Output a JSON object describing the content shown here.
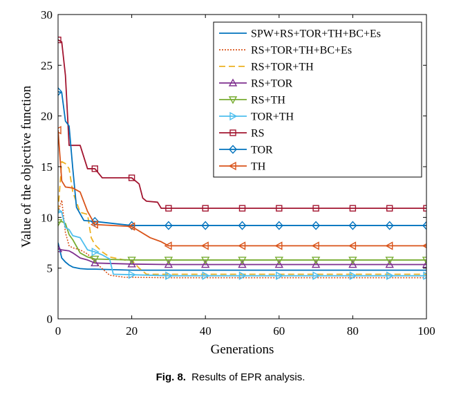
{
  "chart_data": {
    "type": "line",
    "xlabel": "Generations",
    "ylabel": "Value of the objective function",
    "xlim": [
      0,
      100
    ],
    "ylim": [
      0,
      30
    ],
    "xticks": [
      0,
      20,
      40,
      60,
      80,
      100
    ],
    "yticks": [
      0,
      5,
      10,
      15,
      20,
      25,
      30
    ],
    "legend_position": "top-right",
    "grid": false,
    "series": [
      {
        "name": "SPW+RS+TOR+TH+BC+Es",
        "color": "#0072BD",
        "dash": "",
        "marker": "none",
        "x": [
          0,
          1,
          2,
          3,
          4,
          6,
          8,
          10,
          15,
          20,
          25,
          30,
          40,
          60,
          80,
          100
        ],
        "y": [
          7.5,
          6.0,
          5.6,
          5.3,
          5.1,
          4.95,
          4.9,
          4.9,
          4.85,
          4.8,
          4.8,
          4.8,
          4.8,
          4.8,
          4.8,
          4.8
        ]
      },
      {
        "name": "RS+TOR+TH+BC+Es",
        "color": "#D95319",
        "dash": "2,2",
        "marker": "none",
        "x": [
          0,
          1,
          2,
          3,
          4,
          6,
          8,
          10,
          14,
          18,
          20,
          30,
          100
        ],
        "y": [
          10.5,
          11.7,
          8.5,
          7.2,
          7.0,
          6.8,
          6.4,
          5.6,
          4.3,
          4.1,
          4.1,
          4.05,
          4.05
        ]
      },
      {
        "name": "RS+TOR+TH",
        "color": "#EDB120",
        "dash": "9,5",
        "marker": "none",
        "x": [
          0,
          1,
          2,
          3,
          4,
          6,
          8,
          9,
          10,
          12,
          14,
          18,
          20,
          22,
          24,
          30,
          100
        ],
        "y": [
          10.6,
          15.5,
          15.3,
          14.8,
          12.5,
          10.5,
          10.3,
          8.0,
          7.3,
          6.6,
          6.1,
          5.8,
          5.8,
          5.0,
          4.4,
          4.4,
          4.4
        ]
      },
      {
        "name": "RS+TOR",
        "color": "#7E2F8E",
        "dash": "",
        "marker": "triangle-up",
        "x": [
          0,
          1,
          2,
          3,
          4,
          6,
          8,
          10,
          20,
          30,
          40,
          50,
          60,
          70,
          80,
          90,
          100
        ],
        "y": [
          6.9,
          6.8,
          6.75,
          6.7,
          6.5,
          6.0,
          5.8,
          5.5,
          5.4,
          5.35,
          5.35,
          5.35,
          5.35,
          5.35,
          5.35,
          5.35,
          5.35
        ]
      },
      {
        "name": "RS+TH",
        "color": "#77AC30",
        "dash": "",
        "marker": "triangle-down",
        "x": [
          0,
          1,
          2,
          3,
          4,
          6,
          8,
          10,
          20,
          30,
          40,
          50,
          60,
          70,
          80,
          90,
          100
        ],
        "y": [
          9.5,
          9.6,
          9.4,
          8.3,
          7.8,
          6.5,
          6.1,
          5.9,
          5.8,
          5.8,
          5.8,
          5.8,
          5.8,
          5.8,
          5.8,
          5.8,
          5.8
        ]
      },
      {
        "name": "TOR+TH",
        "color": "#4DBEEE",
        "dash": "",
        "marker": "triangle-right",
        "x": [
          0,
          1,
          2,
          3,
          4,
          6,
          8,
          10,
          12,
          14,
          15,
          20,
          30,
          40,
          50,
          60,
          70,
          80,
          90,
          100
        ],
        "y": [
          10.6,
          10.5,
          9.0,
          8.8,
          8.2,
          8.0,
          6.8,
          6.6,
          6.3,
          5.9,
          4.4,
          4.35,
          4.25,
          4.25,
          4.25,
          4.25,
          4.25,
          4.25,
          4.25,
          4.25
        ]
      },
      {
        "name": "RS",
        "color": "#A2142F",
        "dash": "",
        "marker": "square",
        "x": [
          0,
          1,
          2,
          3,
          6,
          8,
          10,
          12,
          20,
          22,
          23,
          24,
          27,
          28,
          30,
          40,
          50,
          60,
          70,
          80,
          90,
          100
        ],
        "y": [
          27.5,
          27.3,
          24.0,
          17.1,
          17.1,
          14.8,
          14.8,
          13.9,
          13.9,
          13.3,
          11.9,
          11.6,
          11.5,
          10.9,
          10.9,
          10.9,
          10.9,
          10.9,
          10.9,
          10.9,
          10.9,
          10.9
        ]
      },
      {
        "name": "TOR",
        "color": "#0072BD",
        "dash": "",
        "marker": "diamond",
        "x": [
          0,
          1,
          2,
          3,
          4,
          5,
          7,
          10,
          20,
          30,
          40,
          50,
          60,
          70,
          80,
          90,
          100
        ],
        "y": [
          22.4,
          22.3,
          19.5,
          19.0,
          14.8,
          11.0,
          9.7,
          9.6,
          9.2,
          9.2,
          9.2,
          9.2,
          9.2,
          9.2,
          9.2,
          9.2,
          9.2
        ]
      },
      {
        "name": "TH",
        "color": "#D95319",
        "dash": "",
        "marker": "triangle-left",
        "x": [
          0,
          1,
          2,
          4,
          6,
          8,
          10,
          20,
          25,
          28,
          30,
          40,
          50,
          60,
          70,
          80,
          90,
          100
        ],
        "y": [
          18.6,
          13.6,
          13.0,
          12.9,
          12.5,
          10.6,
          9.3,
          9.1,
          8.0,
          7.6,
          7.2,
          7.2,
          7.2,
          7.2,
          7.2,
          7.2,
          7.2,
          7.2
        ]
      }
    ]
  },
  "caption": {
    "fig_num": "Fig. 8.",
    "text": "Results of EPR analysis."
  }
}
